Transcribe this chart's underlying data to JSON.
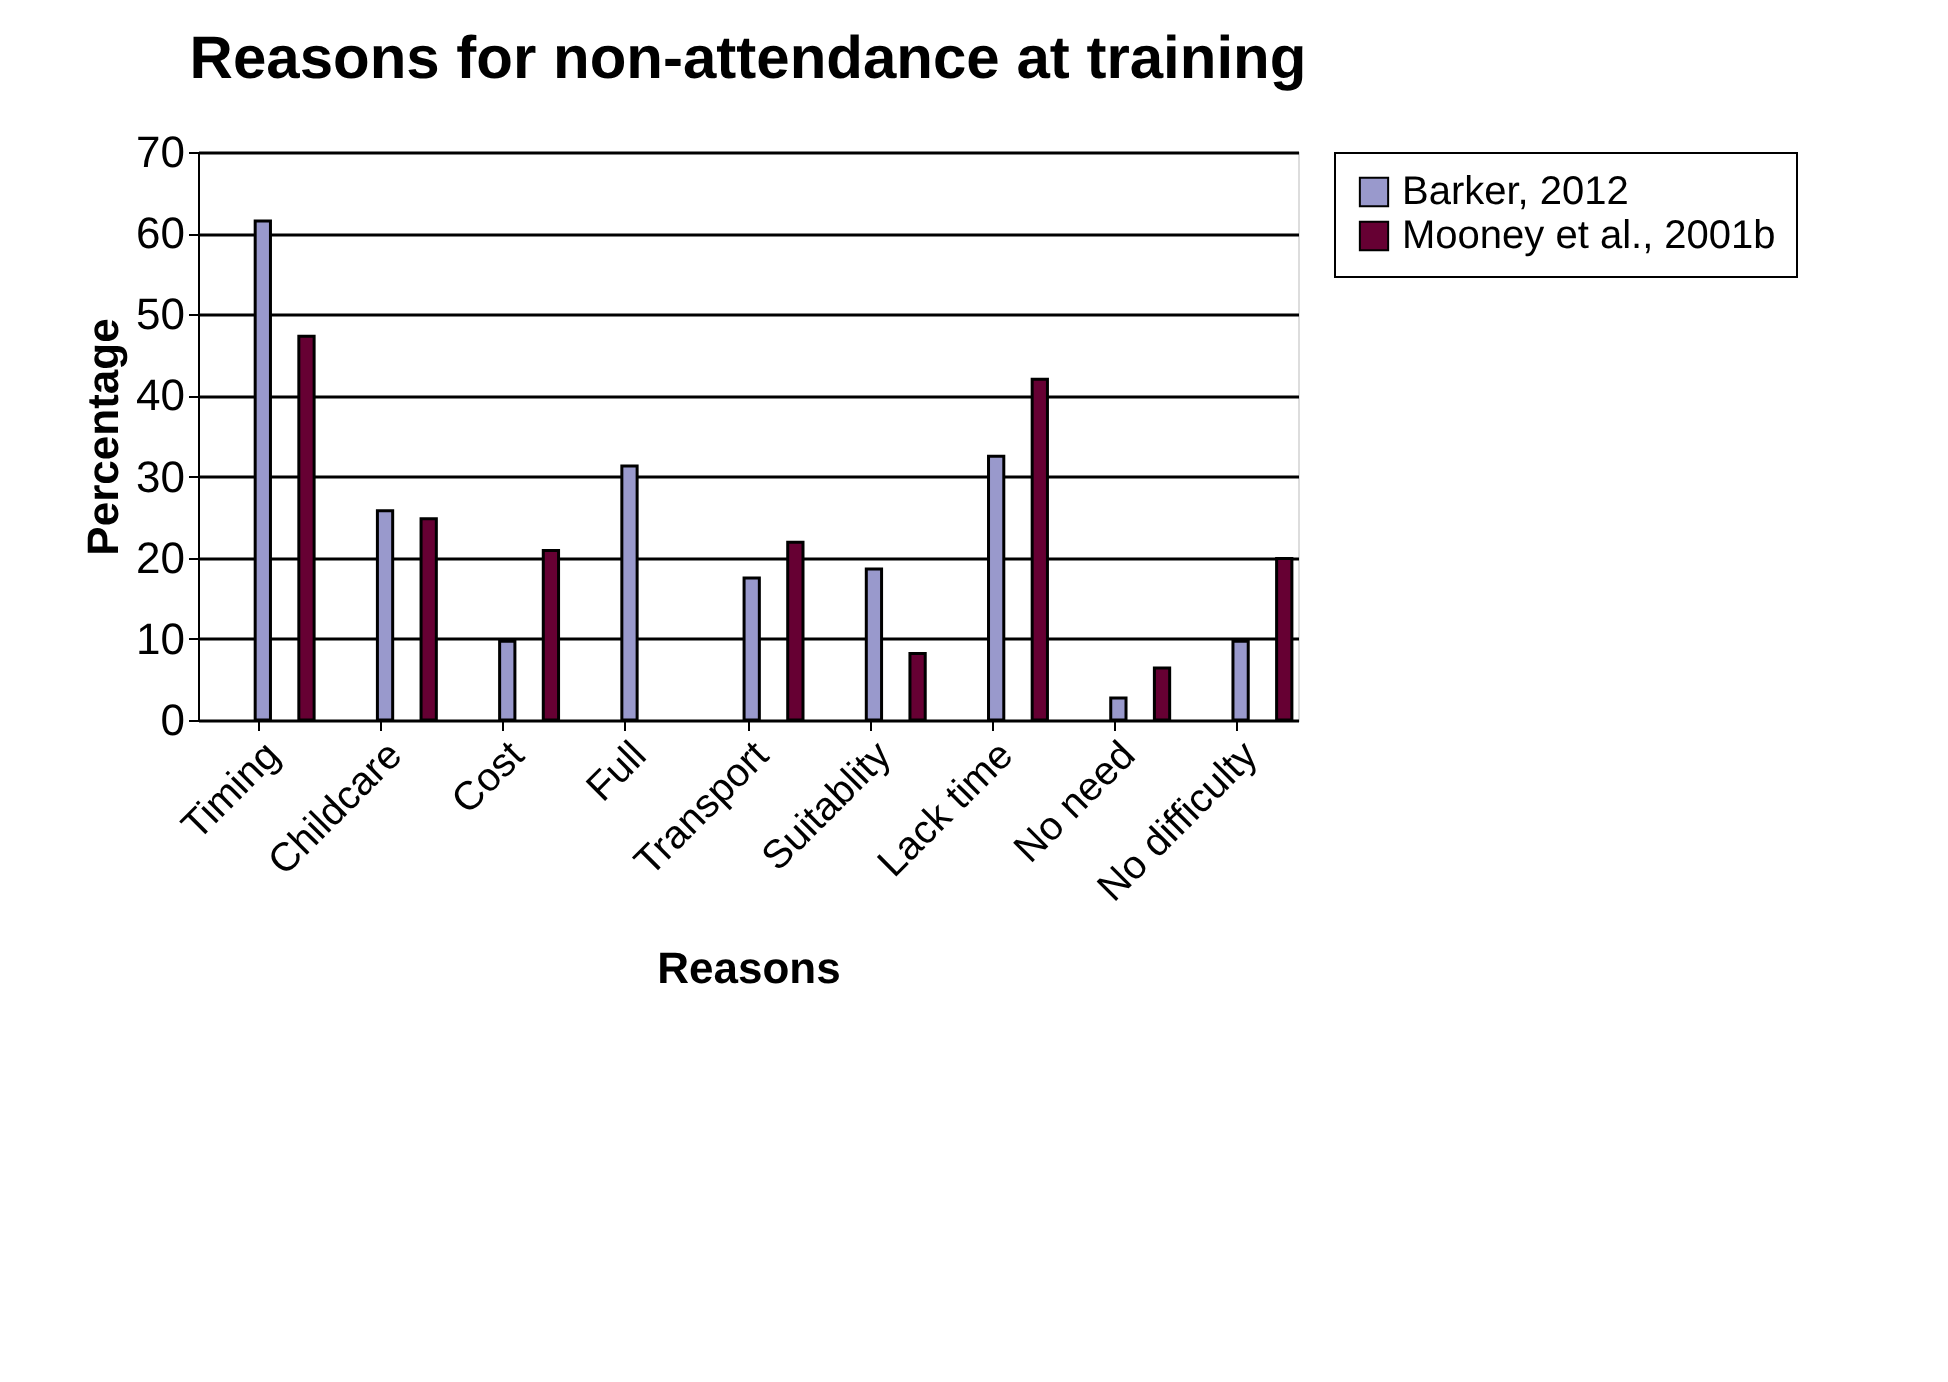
{
  "chart_data": {
    "type": "bar",
    "title": "Reasons for non-attendance at training",
    "xlabel": "Reasons",
    "ylabel": "Percentage",
    "categories": [
      "Timing",
      "Childcare",
      "Cost",
      "Full",
      "Transport",
      "Suitablity",
      "Lack time",
      "No need",
      "No difficulty"
    ],
    "series": [
      {
        "name": "Barker, 2012",
        "color": "#9999cc",
        "values": [
          61.5,
          25.8,
          9.7,
          31.3,
          17.5,
          18.6,
          32.5,
          2.7,
          9.7
        ]
      },
      {
        "name": "Mooney et al., 2001b",
        "color": "#660033",
        "values": [
          47.3,
          24.8,
          20.9,
          null,
          21.9,
          8.2,
          42.0,
          6.4,
          19.9
        ]
      }
    ],
    "ylim": [
      0,
      70
    ],
    "yticks": [
      0,
      10,
      20,
      30,
      40,
      50,
      60,
      70
    ],
    "grid": "y",
    "legend": "right"
  }
}
